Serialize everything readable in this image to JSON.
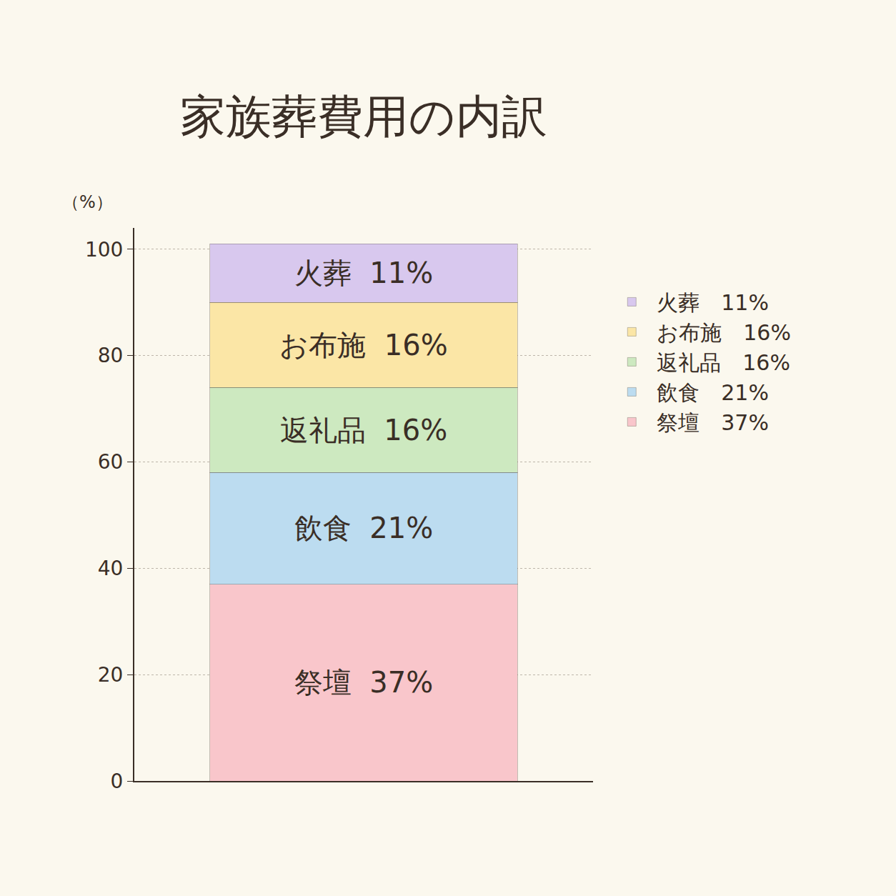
{
  "chart_data": {
    "type": "bar",
    "title": "家族葬費用の内訳",
    "y_label": "（%）",
    "stacked": true,
    "categories": [
      null
    ],
    "series": [
      {
        "name": "祭壇",
        "color": "#f9c6cb",
        "values": [
          37
        ],
        "value_labels": [
          "37%"
        ]
      },
      {
        "name": "飲食",
        "color": "#bcdcf0",
        "values": [
          21
        ],
        "value_labels": [
          "21%"
        ]
      },
      {
        "name": "返礼品",
        "color": "#cde9c0",
        "values": [
          16
        ],
        "value_labels": [
          "16%"
        ]
      },
      {
        "name": "お布施",
        "color": "#fbe6a6",
        "values": [
          16
        ],
        "value_labels": [
          "16%"
        ]
      },
      {
        "name": "火葬",
        "color": "#d8c8ee",
        "values": [
          11
        ],
        "value_labels": [
          "11%"
        ]
      }
    ],
    "ylim": [
      0,
      104
    ],
    "yticks": [
      0,
      20,
      40,
      60,
      80,
      100
    ],
    "grid": true,
    "legend": "right",
    "data_labels": true,
    "tick_labels": "y"
  }
}
